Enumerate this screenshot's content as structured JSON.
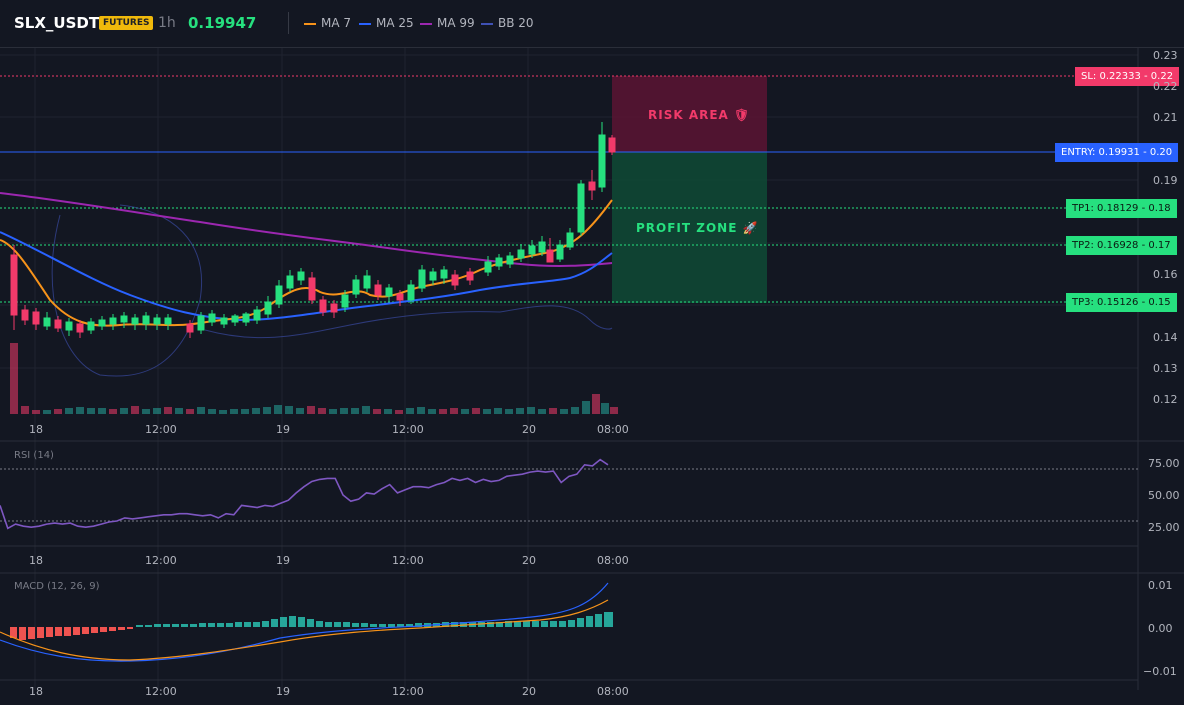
{
  "header": {
    "symbol": "SLX_USDT",
    "badge": "FUTURES",
    "timeframe": "1h",
    "last_price": "0.19947",
    "indicators": [
      {
        "label": "MA 7",
        "color": "#f7931a"
      },
      {
        "label": "MA 25",
        "color": "#2962ff"
      },
      {
        "label": "MA 99",
        "color": "#9c27b0"
      },
      {
        "label": "BB 20",
        "color": "#3f51b5"
      }
    ]
  },
  "price_axis": [
    "0.23",
    "0.22",
    "0.21",
    "0.20",
    "0.19",
    "0.18",
    "0.17",
    "0.16",
    "0.15",
    "0.14",
    "0.13",
    "0.12"
  ],
  "time_axis": [
    "18",
    "12:00",
    "19",
    "12:00",
    "20",
    "08:00"
  ],
  "levels": {
    "sl": {
      "label": "SL: 0.22333",
      "axis": "0.22",
      "value": 0.22333,
      "color": "#f23a6a"
    },
    "entry": {
      "label": "ENTRY: 0.19931",
      "axis": "0.20",
      "value": 0.19931,
      "color": "#2962ff"
    },
    "tp1": {
      "label": "TP1: 0.18129",
      "axis": "0.18",
      "value": 0.18129,
      "color": "#26e07f"
    },
    "tp2": {
      "label": "TP2: 0.16928",
      "axis": "0.17",
      "value": 0.16928,
      "color": "#26e07f"
    },
    "tp3": {
      "label": "TP3: 0.15126",
      "axis": "0.15",
      "value": 0.15126,
      "color": "#26e07f"
    }
  },
  "zones": {
    "risk_label": "RISK AREA 🛡",
    "profit_label": "PROFIT ZONE 🚀"
  },
  "rsi": {
    "label": "RSI (14)",
    "axis": [
      "75.00",
      "50.00",
      "25.00"
    ],
    "values": [
      40,
      18,
      22,
      20,
      19,
      20,
      22,
      23,
      22,
      23,
      20,
      19,
      20,
      22,
      24,
      25,
      28,
      27,
      28,
      29,
      30,
      31,
      31,
      32,
      32,
      31,
      30,
      31,
      28,
      32,
      31,
      40,
      39,
      38,
      40,
      39,
      42,
      45,
      52,
      58,
      63,
      65,
      66,
      66,
      50,
      44,
      46,
      52,
      51,
      56,
      60,
      52,
      55,
      58,
      58,
      57,
      60,
      62,
      66,
      64,
      66,
      62,
      65,
      63,
      64,
      68,
      69,
      70,
      72,
      73,
      72,
      73,
      62,
      68,
      70,
      79,
      78,
      84,
      79
    ]
  },
  "macd": {
    "label": "MACD (12, 26, 9)",
    "axis": [
      "0.01",
      "0.00",
      "−0.01"
    ]
  }
}
